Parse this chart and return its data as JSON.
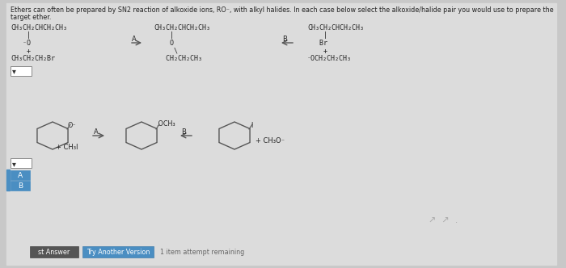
{
  "bg_color": "#c8c8c8",
  "content_color": "#dcdcdc",
  "title_line1": "Ethers can often be prepared by SN2 reaction of alkoxide ions, RO⁻, with alkyl halides. In each case below select the alkoxide/halide pair you would use to prepare the",
  "title_line2": "target ether.",
  "top_left_lines": [
    "CH₃CH₂CHCH₂CH₃",
    "    |",
    "   ⁻O",
    "    +",
    "CH₃CH₂CH₂Br"
  ],
  "top_mid_lines": [
    "CH₃CH₂CHCH₂CH₃",
    "    |",
    "    O",
    "     \\",
    "   CH₂CH₂CH₃"
  ],
  "top_right_lines": [
    "CH₃CH₂CHCH₂CH₃",
    "    |",
    "   Br",
    "    +",
    "⁻OCH₂CH₂CH₃"
  ],
  "arrow_a": "A",
  "arrow_b": "B",
  "bot_left_o_label": "O⁻",
  "bot_left_reagent": "+ CH₃I",
  "bot_mid_label": ".OCH₃",
  "bot_right_reagent": "+ CH₃O⁻",
  "bot_right_i_label": "I",
  "dropdown_text": "▾",
  "answer_a": "A",
  "answer_b": "B",
  "btn1_text": "st Answer",
  "btn2_text": "Try Another Version",
  "footer_text": "1 item attempt remaining",
  "btn1_color": "#555555",
  "btn2_color": "#4a8ec2",
  "ans_color": "#4a8ec2",
  "text_color": "#222222",
  "font_size": 6.0,
  "ring_ec": "#555555",
  "ring_lw": 1.0,
  "arrow_color": "#555555"
}
